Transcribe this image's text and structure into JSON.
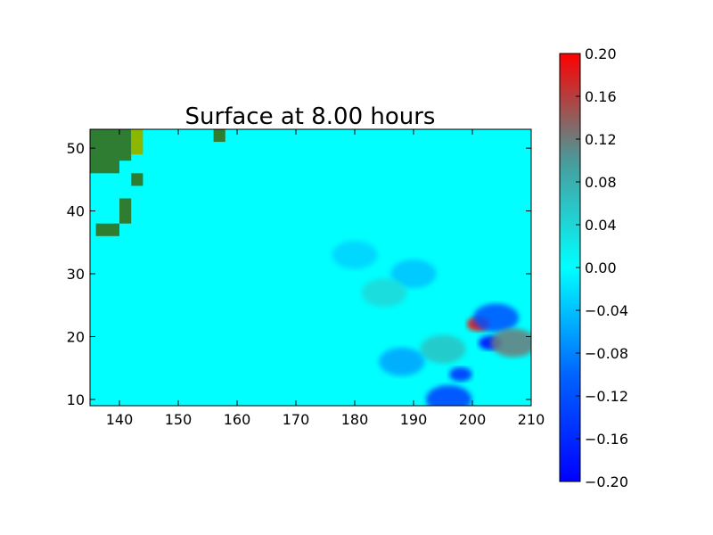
{
  "chart_data": {
    "type": "heatmap",
    "title": "Surface at 8.00 hours",
    "xlabel": "",
    "ylabel": "",
    "xlim": [
      135,
      210
    ],
    "ylim": [
      9,
      53
    ],
    "x_ticks": [
      140,
      150,
      160,
      170,
      180,
      190,
      200,
      210
    ],
    "y_ticks": [
      10,
      20,
      30,
      40,
      50
    ],
    "grid": false,
    "colorbar": {
      "range": [
        -0.2,
        0.2
      ],
      "ticks": [
        "0.20",
        "0.16",
        "0.12",
        "0.08",
        "0.04",
        "0.00",
        "−0.04",
        "−0.08",
        "−0.12",
        "−0.16",
        "−0.20"
      ],
      "colors": {
        "low": "#0000ff",
        "mid": "#00ffff",
        "high": "#ff0000"
      }
    },
    "land_cells": [
      {
        "x": [
          135,
          140
        ],
        "y": [
          46,
          53
        ]
      },
      {
        "x": [
          140,
          142
        ],
        "y": [
          48,
          53
        ]
      },
      {
        "x": [
          142,
          144
        ],
        "y": [
          51,
          53
        ]
      },
      {
        "x": [
          142,
          144
        ],
        "y": [
          49,
          51
        ]
      },
      {
        "x": [
          142,
          144
        ],
        "y": [
          44,
          46
        ]
      },
      {
        "x": [
          140,
          142
        ],
        "y": [
          38,
          42
        ]
      },
      {
        "x": [
          136,
          140
        ],
        "y": [
          36,
          38
        ]
      },
      {
        "x": [
          156,
          158
        ],
        "y": [
          51,
          53
        ]
      }
    ],
    "land_colors": {
      "land": "#2f7d32",
      "highland": "#8db600"
    },
    "anomalies": [
      {
        "x": 201,
        "y": 22,
        "value": 0.2
      },
      {
        "x": 203,
        "y": 19,
        "value": -0.2
      },
      {
        "x": 198,
        "y": 14,
        "value": -0.16
      },
      {
        "x": 196,
        "y": 10,
        "value": -0.14
      },
      {
        "x": 204,
        "y": 23,
        "value": -0.12
      },
      {
        "x": 207,
        "y": 19,
        "value": 0.12
      },
      {
        "x": 195,
        "y": 18,
        "value": 0.06
      },
      {
        "x": 188,
        "y": 16,
        "value": -0.06
      },
      {
        "x": 190,
        "y": 30,
        "value": -0.04
      },
      {
        "x": 185,
        "y": 27,
        "value": 0.04
      },
      {
        "x": 180,
        "y": 33,
        "value": -0.03
      }
    ]
  }
}
